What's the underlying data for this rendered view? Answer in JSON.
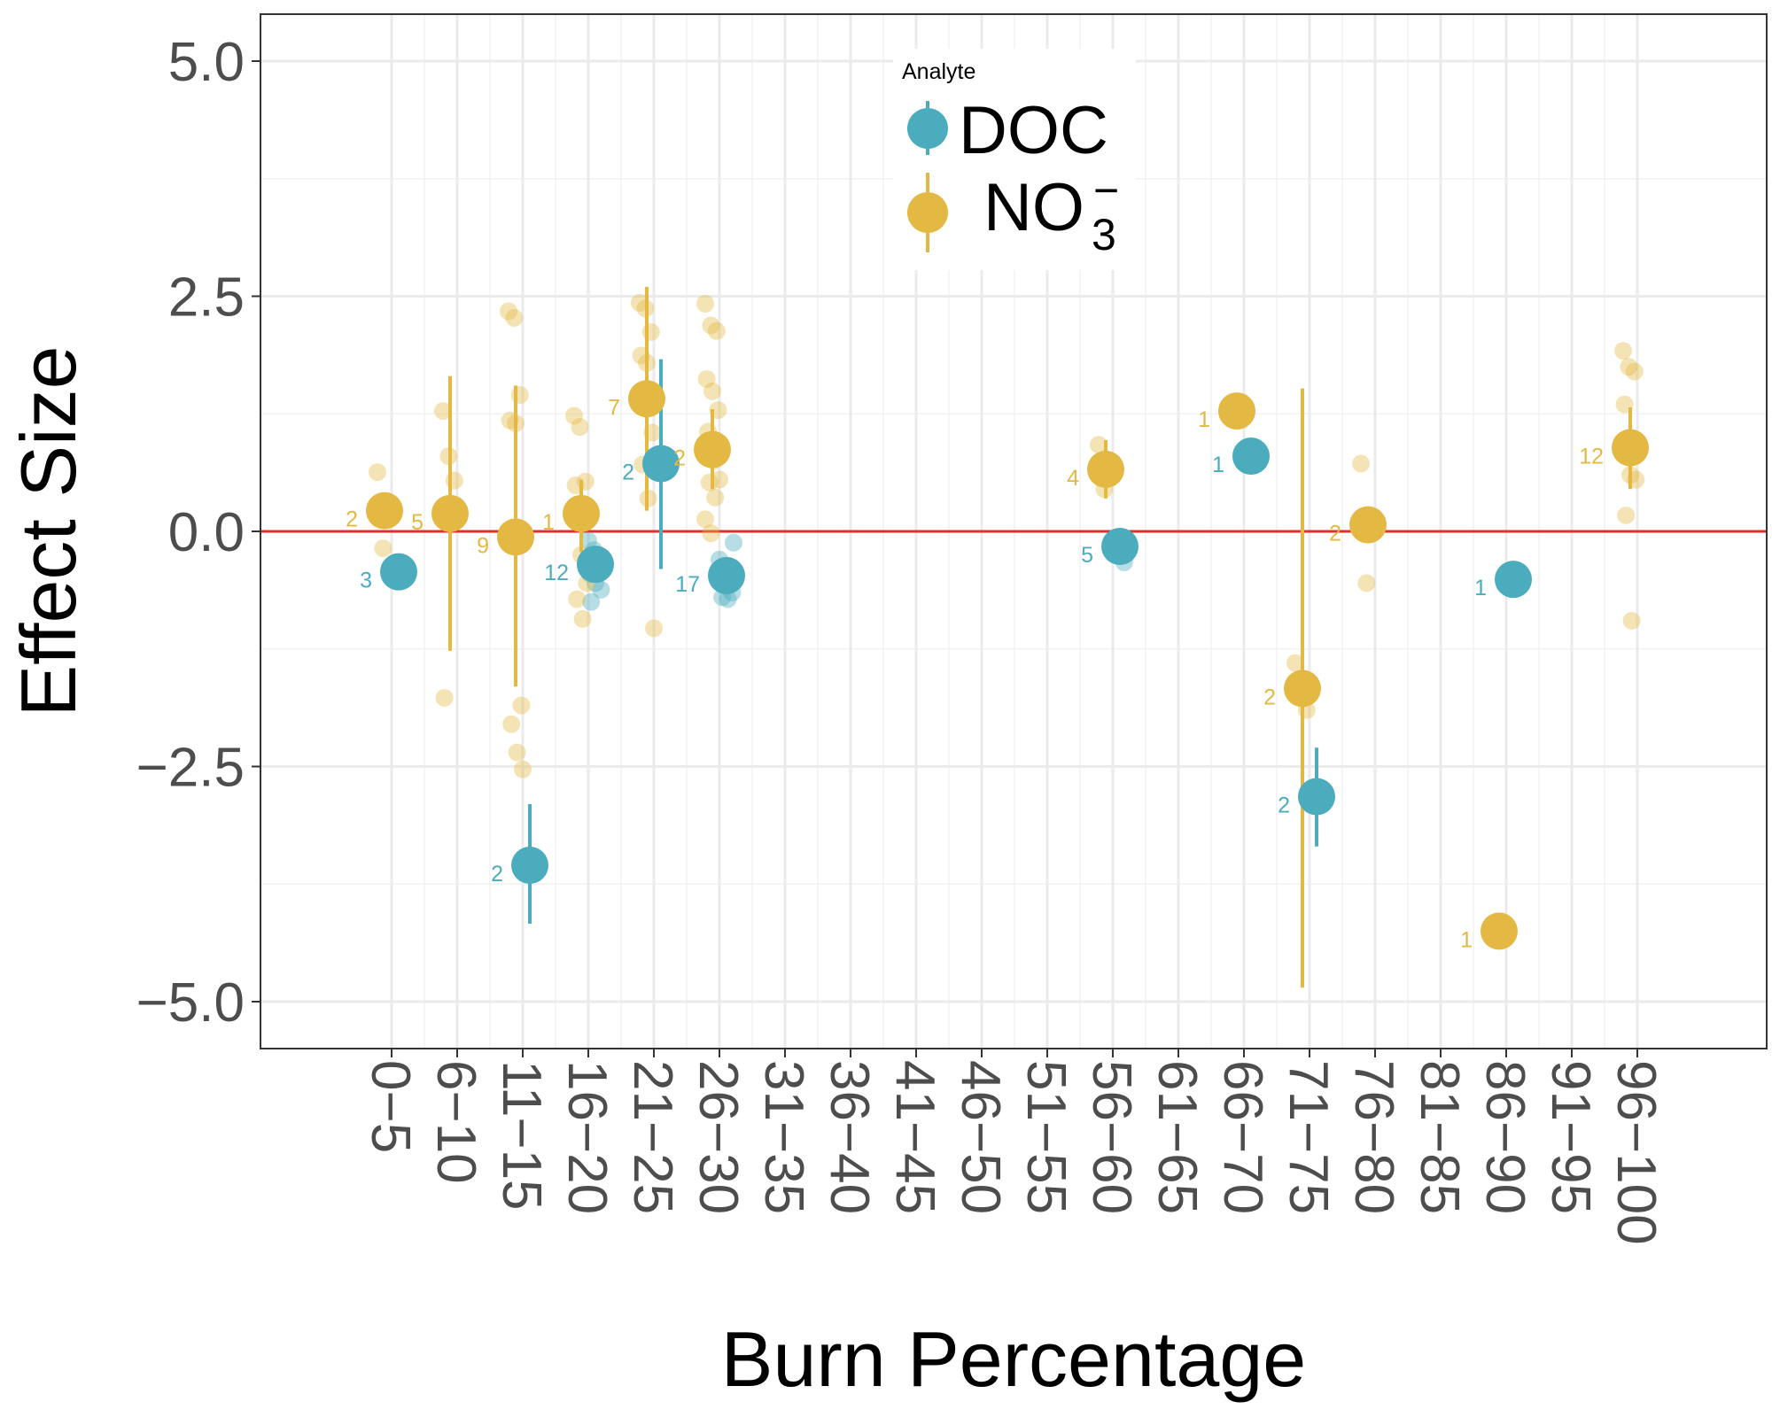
{
  "chart_data": {
    "type": "scatter",
    "xlabel": "Burn Percentage",
    "ylabel": "Effect Size",
    "ylim": [
      -5.5,
      5.5
    ],
    "yticks": [
      5.0,
      2.5,
      0.0,
      -2.5,
      -5.0
    ],
    "ytick_labels": [
      "5.0",
      "2.5",
      "0.0",
      "−2.5",
      "−5.0"
    ],
    "categories": [
      "0−5",
      "6−10",
      "11−15",
      "16−20",
      "21−25",
      "26−30",
      "31−35",
      "36−40",
      "41−45",
      "46−50",
      "51−55",
      "56−60",
      "61−65",
      "66−70",
      "71−75",
      "76−80",
      "81−85",
      "86−90",
      "91−95",
      "96−100"
    ],
    "reference_line": {
      "y": 0,
      "color": "#e0302b"
    },
    "grid": true,
    "legend": {
      "title": "Analyte",
      "position": "top-center",
      "entries": [
        {
          "label": "DOC",
          "color": "#4bacbd"
        },
        {
          "label": "NO",
          "subscript": "3",
          "superscript": "−",
          "color": "#e3b843"
        }
      ]
    },
    "series": [
      {
        "name": "DOC",
        "color": "#4bacbd",
        "means": [
          {
            "cat": 0,
            "y": -0.43,
            "n": "3",
            "ci": null
          },
          {
            "cat": 2,
            "y": -3.55,
            "n": "2",
            "ci": [
              -4.17,
              -2.9
            ]
          },
          {
            "cat": 3,
            "y": -0.35,
            "n": "12",
            "ci": null
          },
          {
            "cat": 4,
            "y": 0.72,
            "n": "2",
            "ci": [
              -0.4,
              1.83
            ]
          },
          {
            "cat": 5,
            "y": -0.47,
            "n": "17",
            "ci": null
          },
          {
            "cat": 11,
            "y": -0.16,
            "n": "5",
            "ci": null
          },
          {
            "cat": 13,
            "y": 0.8,
            "n": "1",
            "ci": null
          },
          {
            "cat": 14,
            "y": -2.82,
            "n": "2",
            "ci": [
              -3.35,
              -2.3
            ]
          },
          {
            "cat": 17,
            "y": -0.51,
            "n": "1",
            "ci": null
          }
        ],
        "raw": [
          {
            "cat": 3,
            "y": [
              -0.1,
              -0.2,
              -0.3,
              -0.45,
              -0.55,
              -0.62,
              -0.75,
              -0.35
            ]
          },
          {
            "cat": 4,
            "y": [
              0.65,
              0.75
            ]
          },
          {
            "cat": 5,
            "y": [
              -0.3,
              -0.38,
              -0.45,
              -0.52,
              -0.58,
              -0.65,
              -0.7,
              -0.72,
              -0.12,
              -0.55
            ]
          },
          {
            "cat": 11,
            "y": [
              -0.1,
              -0.22,
              -0.33
            ]
          },
          {
            "cat": 14,
            "y": [
              -2.85
            ]
          }
        ]
      },
      {
        "name": "NO3",
        "color": "#e3b843",
        "means": [
          {
            "cat": 0,
            "y": 0.22,
            "n": "2",
            "ci": null
          },
          {
            "cat": 1,
            "y": 0.19,
            "n": "5",
            "ci": [
              -1.27,
              1.65
            ]
          },
          {
            "cat": 2,
            "y": -0.06,
            "n": "9",
            "ci": [
              -1.65,
              1.55
            ]
          },
          {
            "cat": 3,
            "y": 0.19,
            "n": "1",
            "ci": [
              -0.22,
              0.55
            ]
          },
          {
            "cat": 4,
            "y": 1.41,
            "n": "7",
            "ci": [
              0.22,
              2.6
            ]
          },
          {
            "cat": 5,
            "y": 0.87,
            "n": "2",
            "ci": [
              0.45,
              1.3
            ]
          },
          {
            "cat": 11,
            "y": 0.66,
            "n": "4",
            "ci": [
              0.35,
              0.97
            ]
          },
          {
            "cat": 13,
            "y": 1.28,
            "n": "1",
            "ci": null
          },
          {
            "cat": 14,
            "y": -1.67,
            "n": "2",
            "ci": [
              -4.85,
              1.52
            ]
          },
          {
            "cat": 15,
            "y": 0.07,
            "n": "2",
            "ci": null
          },
          {
            "cat": 17,
            "y": -4.25,
            "n": "1",
            "ci": null
          },
          {
            "cat": 19,
            "y": 0.89,
            "n": "12",
            "ci": [
              0.45,
              1.32
            ]
          }
        ],
        "raw": [
          {
            "cat": 0,
            "y": [
              0.63,
              -0.18
            ]
          },
          {
            "cat": 1,
            "y": [
              1.28,
              0.8,
              0.54,
              -1.77
            ]
          },
          {
            "cat": 2,
            "y": [
              2.34,
              2.27,
              1.45,
              1.18,
              1.15,
              -1.85,
              -2.05,
              -2.35,
              -2.53
            ]
          },
          {
            "cat": 3,
            "y": [
              1.23,
              1.11,
              0.53,
              0.49,
              -0.25,
              -0.55,
              -0.72,
              -0.93
            ]
          },
          {
            "cat": 4,
            "y": [
              2.43,
              2.37,
              2.12,
              1.87,
              1.79,
              1.05,
              0.71,
              0.35,
              -1.03
            ]
          },
          {
            "cat": 5,
            "y": [
              2.42,
              2.19,
              2.13,
              1.62,
              1.49,
              1.29,
              1.06,
              0.75,
              0.55,
              0.52,
              0.36,
              0.13,
              -0.02
            ]
          },
          {
            "cat": 11,
            "y": [
              0.92,
              0.45
            ]
          },
          {
            "cat": 13,
            "y": [
              1.28
            ]
          },
          {
            "cat": 14,
            "y": [
              -1.4,
              -1.62,
              -1.9,
              -1.75
            ]
          },
          {
            "cat": 15,
            "y": [
              0.72,
              -0.55
            ]
          },
          {
            "cat": 19,
            "y": [
              1.92,
              1.75,
              1.7,
              1.35,
              0.6,
              0.55,
              0.17,
              -0.95
            ]
          }
        ]
      }
    ]
  }
}
